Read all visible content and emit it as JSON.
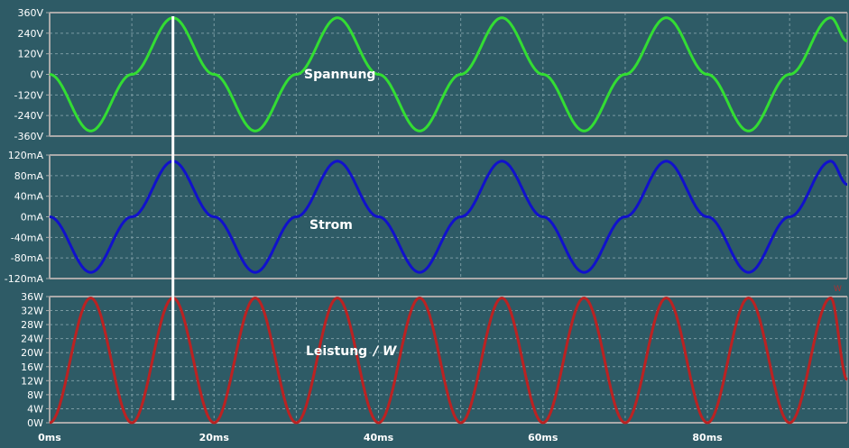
{
  "chart_data": [
    {
      "type": "line",
      "title": "Spannung",
      "y_tick_labels": [
        "360V",
        "240V",
        "120V",
        "0V",
        "-120V",
        "-240V",
        "-360V"
      ],
      "ylim": [
        -360,
        360
      ],
      "xlim": [
        0,
        97
      ],
      "series": [
        {
          "color": "#33dd33",
          "x": [
            0,
            5,
            10,
            15,
            20,
            25,
            30,
            35,
            40,
            45,
            50,
            55,
            60,
            65,
            70,
            75,
            80,
            85,
            90,
            95,
            97
          ],
          "y": [
            0,
            -330,
            0,
            330,
            0,
            -330,
            0,
            330,
            0,
            -330,
            0,
            330,
            0,
            -330,
            0,
            330,
            0,
            -330,
            0,
            330,
            194
          ]
        }
      ]
    },
    {
      "type": "line",
      "title": "Strom",
      "y_tick_labels": [
        "120mA",
        "80mA",
        "40mA",
        "0mA",
        "-40mA",
        "-80mA",
        "-120mA"
      ],
      "ylim": [
        -120,
        120
      ],
      "xlim": [
        0,
        97
      ],
      "series": [
        {
          "color": "#1111cc",
          "x": [
            0,
            5,
            10,
            15,
            20,
            25,
            30,
            35,
            40,
            45,
            50,
            55,
            60,
            65,
            70,
            75,
            80,
            85,
            90,
            95,
            97
          ],
          "y": [
            0,
            -108,
            0,
            108,
            0,
            -108,
            0,
            108,
            0,
            -108,
            0,
            108,
            0,
            -108,
            0,
            108,
            0,
            -108,
            0,
            108,
            63
          ]
        }
      ]
    },
    {
      "type": "line",
      "title": "Leistung",
      "unit_label": "/ W",
      "y_tick_labels": [
        "36W",
        "32W",
        "28W",
        "24W",
        "20W",
        "16W",
        "12W",
        "8W",
        "4W",
        "0W"
      ],
      "ylim": [
        0,
        36
      ],
      "xlim": [
        0,
        97
      ],
      "x_tick_labels": [
        "0ms",
        "20ms",
        "40ms",
        "60ms",
        "80ms"
      ],
      "series": [
        {
          "color": "#bb2222",
          "x": [
            0,
            5,
            10,
            15,
            20,
            25,
            30,
            35,
            40,
            45,
            50,
            55,
            60,
            65,
            70,
            75,
            80,
            85,
            90,
            95,
            97
          ],
          "y": [
            0,
            35.6,
            0,
            35.6,
            0,
            35.6,
            0,
            35.6,
            0,
            35.6,
            0,
            35.6,
            0,
            35.6,
            0,
            35.6,
            0,
            35.6,
            0,
            35.6,
            12.3
          ]
        }
      ]
    }
  ],
  "cursor": {
    "x": 15,
    "color": "#ffffff"
  },
  "corner_tag": "W",
  "colors": {
    "background": "#2e5b66",
    "frame": "#aaaaaa",
    "grid": "#7a9aa2"
  }
}
